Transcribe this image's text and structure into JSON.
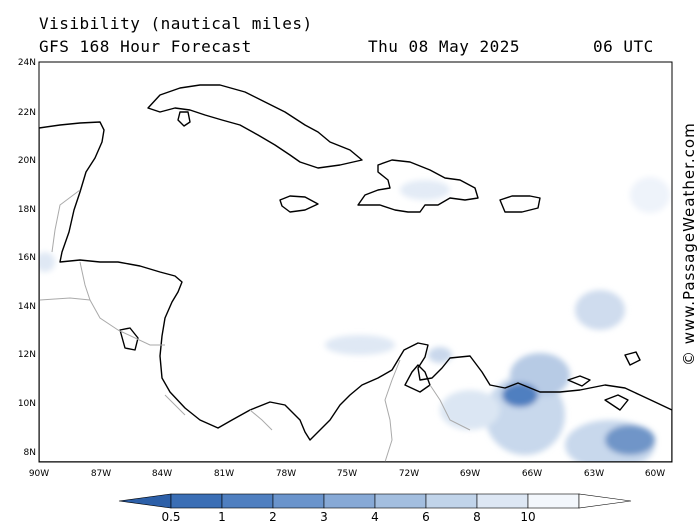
{
  "header": {
    "title": "Visibility (nautical miles)",
    "subtitle": "GFS 168 Hour Forecast",
    "date": "Thu 08 May 2025",
    "time": "06 UTC"
  },
  "map": {
    "lon_range": [
      -90,
      -59.5
    ],
    "lat_range": [
      7.5,
      24
    ],
    "lon_ticks": [
      "90W",
      "87W",
      "84W",
      "81W",
      "78W",
      "75W",
      "72W",
      "69W",
      "66W",
      "63W",
      "60W"
    ],
    "lat_ticks": [
      "24N",
      "22N",
      "20N",
      "18N",
      "16N",
      "14N",
      "12N",
      "10N",
      "8N"
    ]
  },
  "colorbar": {
    "labels": [
      "0.5",
      "1",
      "2",
      "3",
      "4",
      "6",
      "8",
      "10"
    ],
    "colors": [
      "#3a6eb5",
      "#4f7fc0",
      "#6a94cc",
      "#87a9d6",
      "#a3bedf",
      "#c1d4ea",
      "#dde7f4",
      "#f3f7fc"
    ]
  },
  "credit": "© www.PassageWeather.com"
}
